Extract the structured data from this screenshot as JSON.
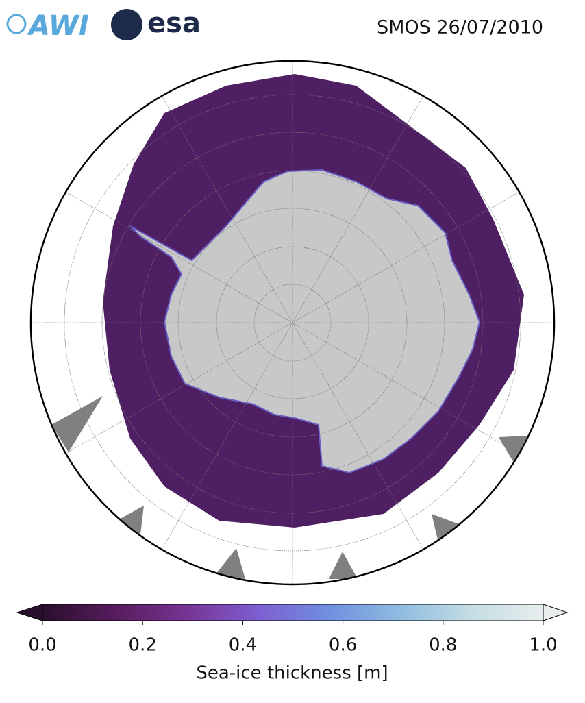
{
  "header": {
    "logos": [
      "AWI",
      "esa"
    ],
    "title": "SMOS 26/07/2010"
  },
  "colorbar": {
    "label": "Sea-ice thickness [m]",
    "range": [
      0,
      1
    ],
    "ticks": [
      {
        "value": 0,
        "label": "0.0"
      },
      0.2,
      0.4,
      0.6,
      0.8,
      {
        "value": 1,
        "label": "1.0"
      }
    ],
    "colors": [
      "#2a0f2e",
      "#561c5c",
      "#773392",
      "#7e5ed0",
      "#6f8fe0",
      "#90bce0",
      "#c4dde3",
      "#e8eeee"
    ],
    "extend": "both"
  }
}
